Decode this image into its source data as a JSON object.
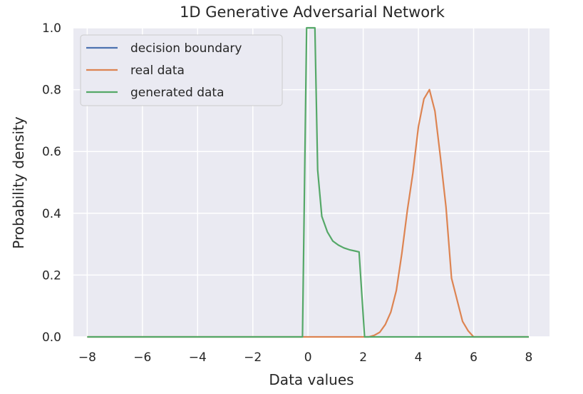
{
  "chart_data": {
    "type": "line",
    "title": "1D Generative Adversarial Network",
    "xlabel": "Data values",
    "ylabel": "Probability density",
    "xlim": [
      -8.5,
      8.75
    ],
    "ylim": [
      0,
      1
    ],
    "xticks": [
      -8,
      -6,
      -4,
      -2,
      0,
      2,
      4,
      6,
      8
    ],
    "xtick_labels": [
      "−8",
      "−6",
      "−4",
      "−2",
      "0",
      "2",
      "4",
      "6",
      "8"
    ],
    "yticks": [
      0,
      0.2,
      0.4,
      0.6,
      0.8,
      1.0
    ],
    "ytick_labels": [
      "0.0",
      "0.2",
      "0.4",
      "0.6",
      "0.8",
      "1.0"
    ],
    "grid": true,
    "legend_position": "top-left",
    "series": [
      {
        "name": "decision boundary",
        "color": "#4c72b0",
        "points": []
      },
      {
        "name": "real data",
        "color": "#dd8452",
        "points": [
          [
            -8,
            0
          ],
          [
            -0.1,
            0
          ],
          [
            2.2,
            0
          ],
          [
            2.4,
            0.005
          ],
          [
            2.6,
            0.015
          ],
          [
            2.8,
            0.04
          ],
          [
            3.0,
            0.08
          ],
          [
            3.2,
            0.15
          ],
          [
            3.4,
            0.27
          ],
          [
            3.6,
            0.41
          ],
          [
            3.8,
            0.53
          ],
          [
            4.0,
            0.68
          ],
          [
            4.2,
            0.77
          ],
          [
            4.4,
            0.8
          ],
          [
            4.6,
            0.73
          ],
          [
            4.8,
            0.58
          ],
          [
            5.0,
            0.42
          ],
          [
            5.2,
            0.19
          ],
          [
            5.4,
            0.12
          ],
          [
            5.6,
            0.05
          ],
          [
            5.8,
            0.02
          ],
          [
            6.0,
            0
          ],
          [
            8,
            0
          ]
        ]
      },
      {
        "name": "generated data",
        "color": "#55a868",
        "points": [
          [
            -8,
            0
          ],
          [
            -0.2,
            0
          ],
          [
            -0.05,
            1.0
          ],
          [
            0.25,
            1.0
          ],
          [
            0.35,
            0.54
          ],
          [
            0.5,
            0.39
          ],
          [
            0.7,
            0.34
          ],
          [
            0.9,
            0.31
          ],
          [
            1.1,
            0.297
          ],
          [
            1.3,
            0.288
          ],
          [
            1.5,
            0.282
          ],
          [
            1.7,
            0.278
          ],
          [
            1.85,
            0.275
          ],
          [
            2.05,
            0
          ],
          [
            8,
            0
          ]
        ]
      }
    ]
  }
}
